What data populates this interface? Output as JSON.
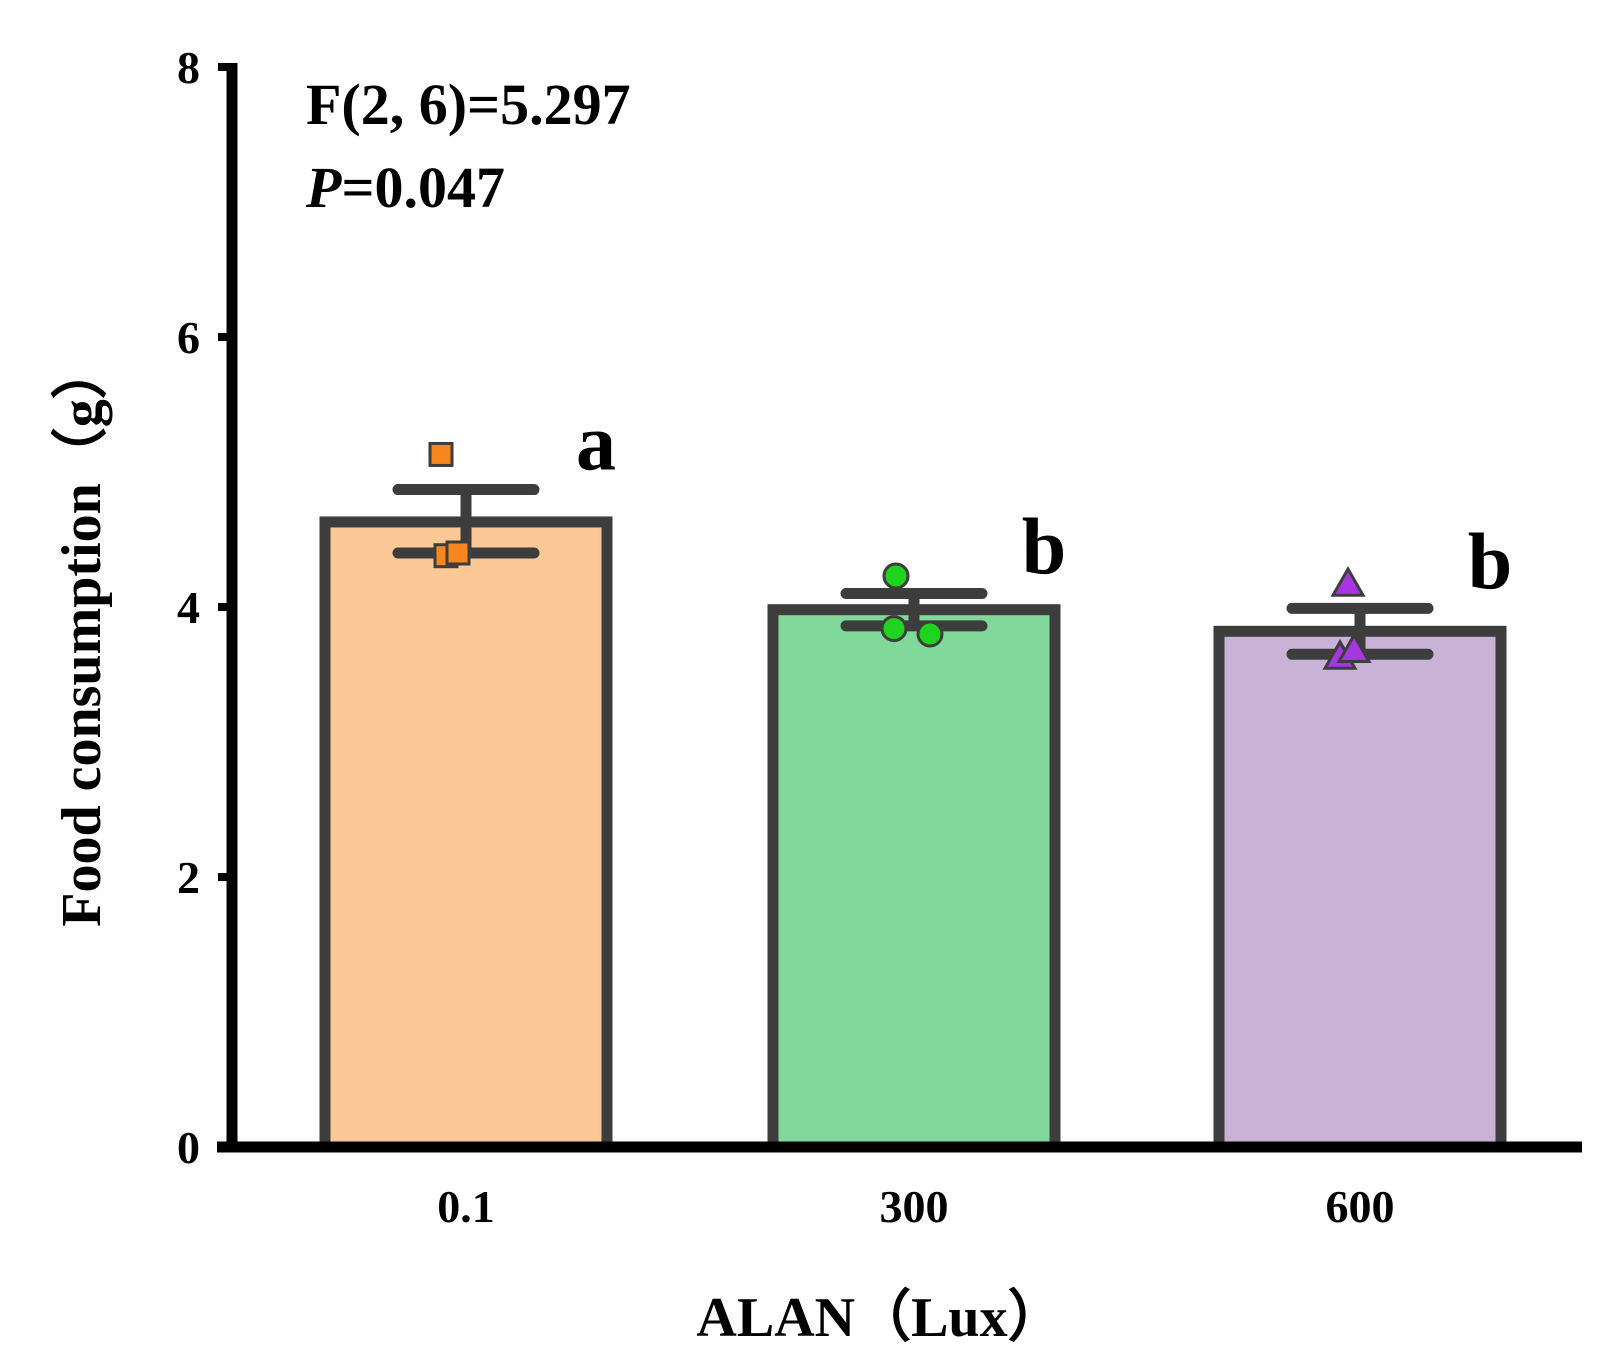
{
  "chart_data": {
    "type": "bar",
    "xlabel": "ALAN（Lux）",
    "ylabel": "Food consumption（g）",
    "ylim": [
      0,
      8
    ],
    "yticks": [
      0,
      2,
      4,
      6,
      8
    ],
    "categories": [
      "0.1",
      "300",
      "600"
    ],
    "values": [
      4.63,
      3.98,
      3.82
    ],
    "error_bars": [
      {
        "lower": 4.4,
        "upper": 4.87
      },
      {
        "lower": 3.86,
        "upper": 4.1
      },
      {
        "lower": 3.65,
        "upper": 3.99
      }
    ],
    "points": [
      [
        5.13,
        4.38,
        4.4
      ],
      [
        4.23,
        3.84,
        3.8
      ],
      [
        4.17,
        3.63,
        3.68
      ]
    ],
    "significance": [
      "a",
      "b",
      "b"
    ],
    "colors": [
      "#FCC896",
      "#80D99A",
      "#C8B2D6"
    ],
    "point_colors": [
      "#F7861F",
      "#1ED41E",
      "#A637E0"
    ],
    "point_markers": [
      "square",
      "circle",
      "triangle"
    ],
    "annotations": {
      "stat_line": "F(2, 6)=5.297",
      "p_label": "P",
      "p_value": "=0.047"
    },
    "grid": false,
    "legend": "none"
  }
}
